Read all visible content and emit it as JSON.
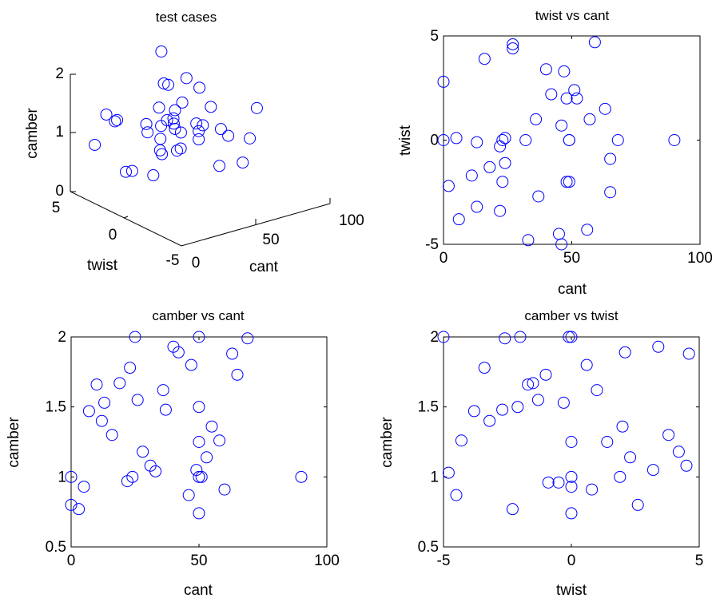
{
  "chart_data": [
    {
      "type": "scatter",
      "title": "test cases",
      "xlabel": "cant",
      "ylabel": "twist",
      "zlabel": "camber",
      "xlim": [
        0,
        100
      ],
      "ylim": [
        -5,
        5
      ],
      "zlim": [
        0,
        2
      ],
      "xticks": [
        "0",
        "50",
        "100"
      ],
      "yticks": [
        "-5",
        "0",
        "5"
      ],
      "zticks": [
        "0",
        "1",
        "2"
      ],
      "marker": "circle",
      "color": "#0000ff"
    },
    {
      "type": "scatter",
      "title": "twist vs cant",
      "xlabel": "cant",
      "ylabel": "twist",
      "xlim": [
        0,
        100
      ],
      "ylim": [
        -5,
        5
      ],
      "xticks": [
        "0",
        "50",
        "100"
      ],
      "yticks": [
        "-5",
        "0",
        "5"
      ],
      "marker": "circle",
      "color": "#0000ff",
      "x": [
        0,
        0,
        5,
        2,
        6,
        11,
        13,
        13,
        16,
        18,
        22,
        22,
        23,
        23,
        24,
        24,
        27,
        27,
        33,
        32,
        36,
        37,
        40,
        42,
        45,
        46,
        46,
        47,
        48,
        48,
        49,
        49,
        49,
        51,
        52,
        56,
        57,
        59,
        63,
        65,
        65,
        68,
        90
      ],
      "y": [
        2.8,
        0,
        0.1,
        -2.2,
        -3.8,
        -1.7,
        -3.2,
        -0.1,
        3.9,
        -1.3,
        -0.3,
        -3.4,
        0,
        -2,
        -1.1,
        0.1,
        4.4,
        4.6,
        -4.8,
        0,
        1,
        -2.7,
        3.4,
        2.2,
        -4.5,
        0.7,
        -5,
        3.3,
        2,
        -2,
        0,
        0,
        -2,
        2.4,
        2,
        -4.3,
        1,
        4.7,
        1.5,
        -0.9,
        -2.5,
        0,
        0
      ]
    },
    {
      "type": "scatter",
      "title": "camber vs cant",
      "xlabel": "cant",
      "ylabel": "camber",
      "xlim": [
        0,
        100
      ],
      "ylim": [
        0.5,
        2
      ],
      "xticks": [
        "0",
        "50",
        "100"
      ],
      "yticks": [
        "0.5",
        "1",
        "1.5",
        "2"
      ],
      "marker": "circle",
      "color": "#0000ff",
      "x": [
        0,
        0,
        3,
        5,
        7,
        10,
        12,
        13,
        16,
        19,
        22,
        23,
        24,
        25,
        26,
        28,
        31,
        33,
        36,
        37,
        40,
        42,
        46,
        47,
        49,
        50,
        50,
        50,
        50,
        50,
        51,
        53,
        55,
        58,
        60,
        63,
        65,
        69,
        90
      ],
      "y": [
        1,
        0.8,
        0.77,
        0.93,
        1.47,
        1.66,
        1.4,
        1.53,
        1.3,
        1.67,
        0.97,
        1.78,
        1,
        2,
        1.55,
        1.18,
        1.08,
        1.04,
        1.62,
        1.48,
        1.93,
        1.89,
        0.87,
        1.8,
        1.05,
        2,
        1.5,
        1.25,
        1,
        0.74,
        1,
        1.14,
        1.36,
        1.26,
        0.91,
        1.88,
        1.73,
        1.99,
        1
      ]
    },
    {
      "type": "scatter",
      "title": "camber vs twist",
      "xlabel": "twist",
      "ylabel": "camber",
      "xlim": [
        -5,
        5
      ],
      "ylim": [
        0.5,
        2
      ],
      "xticks": [
        "-5",
        "0",
        "5"
      ],
      "yticks": [
        "0.5",
        "1",
        "1.5",
        "2"
      ],
      "marker": "circle",
      "color": "#0000ff",
      "x": [
        -5,
        -4.8,
        -4.5,
        -4.3,
        -3.8,
        -3.4,
        -3.2,
        -2.7,
        -2.6,
        -2.3,
        -2.1,
        -2,
        -1.7,
        -1.5,
        -1.3,
        -1,
        -0.9,
        -0.5,
        -0.3,
        -0.1,
        0,
        0,
        0,
        0,
        0,
        0.6,
        0.8,
        1,
        1.4,
        1.9,
        2,
        2.1,
        2.3,
        2.6,
        3.2,
        3.4,
        3.8,
        4.2,
        4.5,
        4.6
      ],
      "y": [
        2,
        1.03,
        0.87,
        1.26,
        1.47,
        1.78,
        1.4,
        1.48,
        1.99,
        0.77,
        1.5,
        2,
        1.66,
        1.67,
        1.55,
        1.73,
        0.96,
        0.96,
        1.53,
        2,
        1.25,
        1,
        0.93,
        0.74,
        2,
        1.8,
        0.91,
        1.62,
        1.25,
        1,
        1.36,
        1.89,
        1.14,
        0.8,
        1.05,
        1.93,
        1.3,
        1.18,
        1.08,
        1.88
      ]
    }
  ]
}
